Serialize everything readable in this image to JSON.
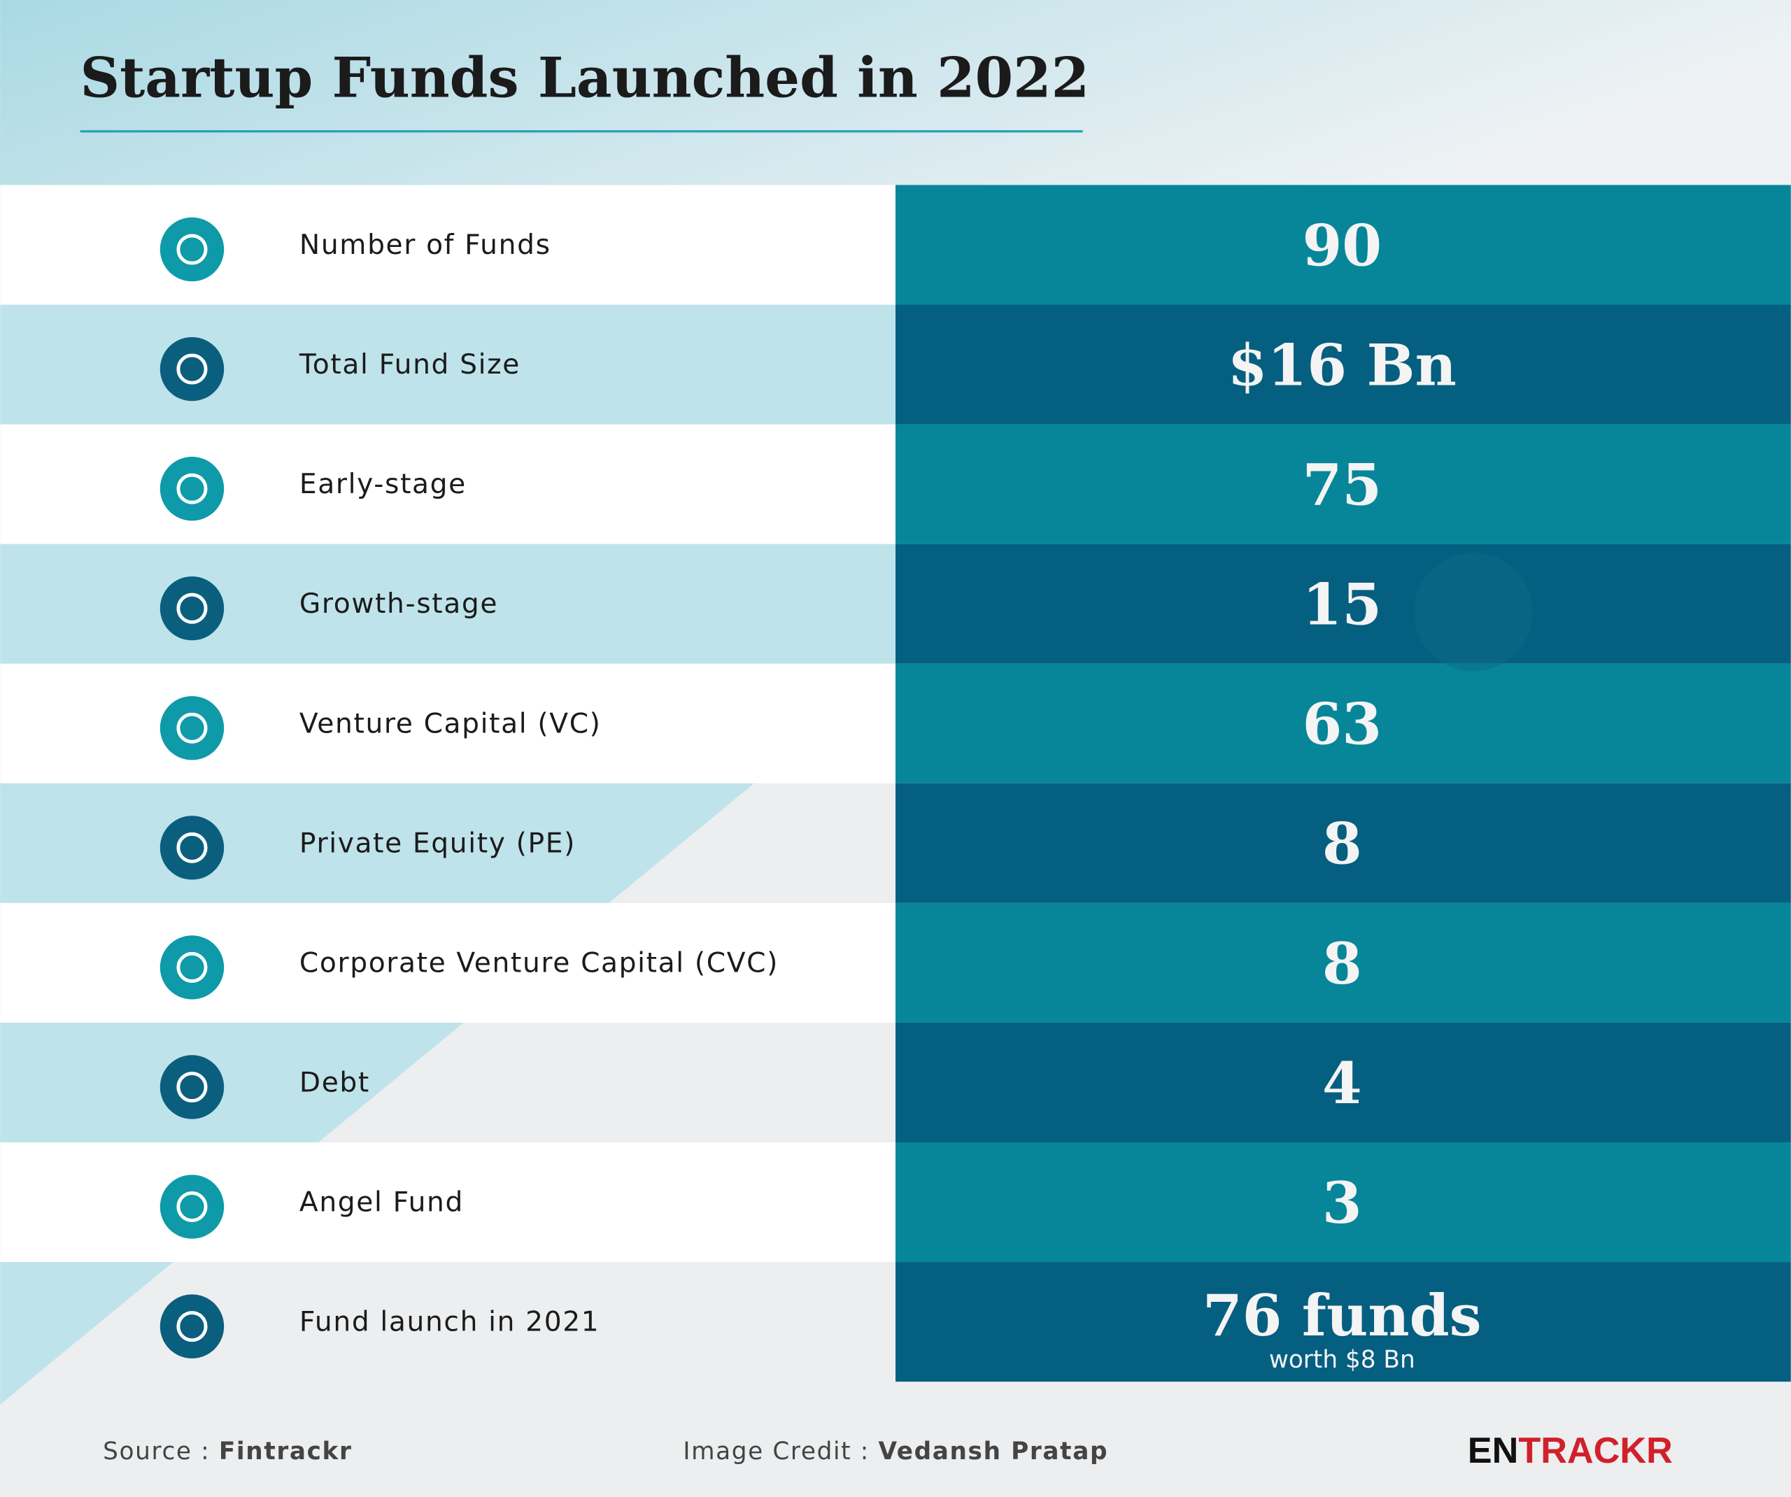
{
  "header": {
    "title": "Startup Funds Launched in 2022"
  },
  "table": {
    "rows": [
      {
        "label": "Number of Funds",
        "value": "90"
      },
      {
        "label": "Total Fund Size",
        "value": "$16 Bn"
      },
      {
        "label": "Early-stage",
        "value": "75"
      },
      {
        "label": "Growth-stage",
        "value": "15"
      },
      {
        "label": "Venture Capital (VC)",
        "value": "63"
      },
      {
        "label": "Private Equity (PE)",
        "value": "8"
      },
      {
        "label": "Corporate Venture Capital (CVC)",
        "value": "8"
      },
      {
        "label": "Debt",
        "value": "4"
      },
      {
        "label": "Angel Fund",
        "value": "3"
      },
      {
        "label": "Fund launch in 2021",
        "value": "76 funds",
        "note": "worth $8 Bn"
      }
    ]
  },
  "footer": {
    "source_label": "Source :",
    "source": "Fintrackr",
    "credit_label": "Image Credit :",
    "credit": "Vedansh Pratap",
    "logo_left": "EN",
    "logo_right": "TRACKR"
  }
}
